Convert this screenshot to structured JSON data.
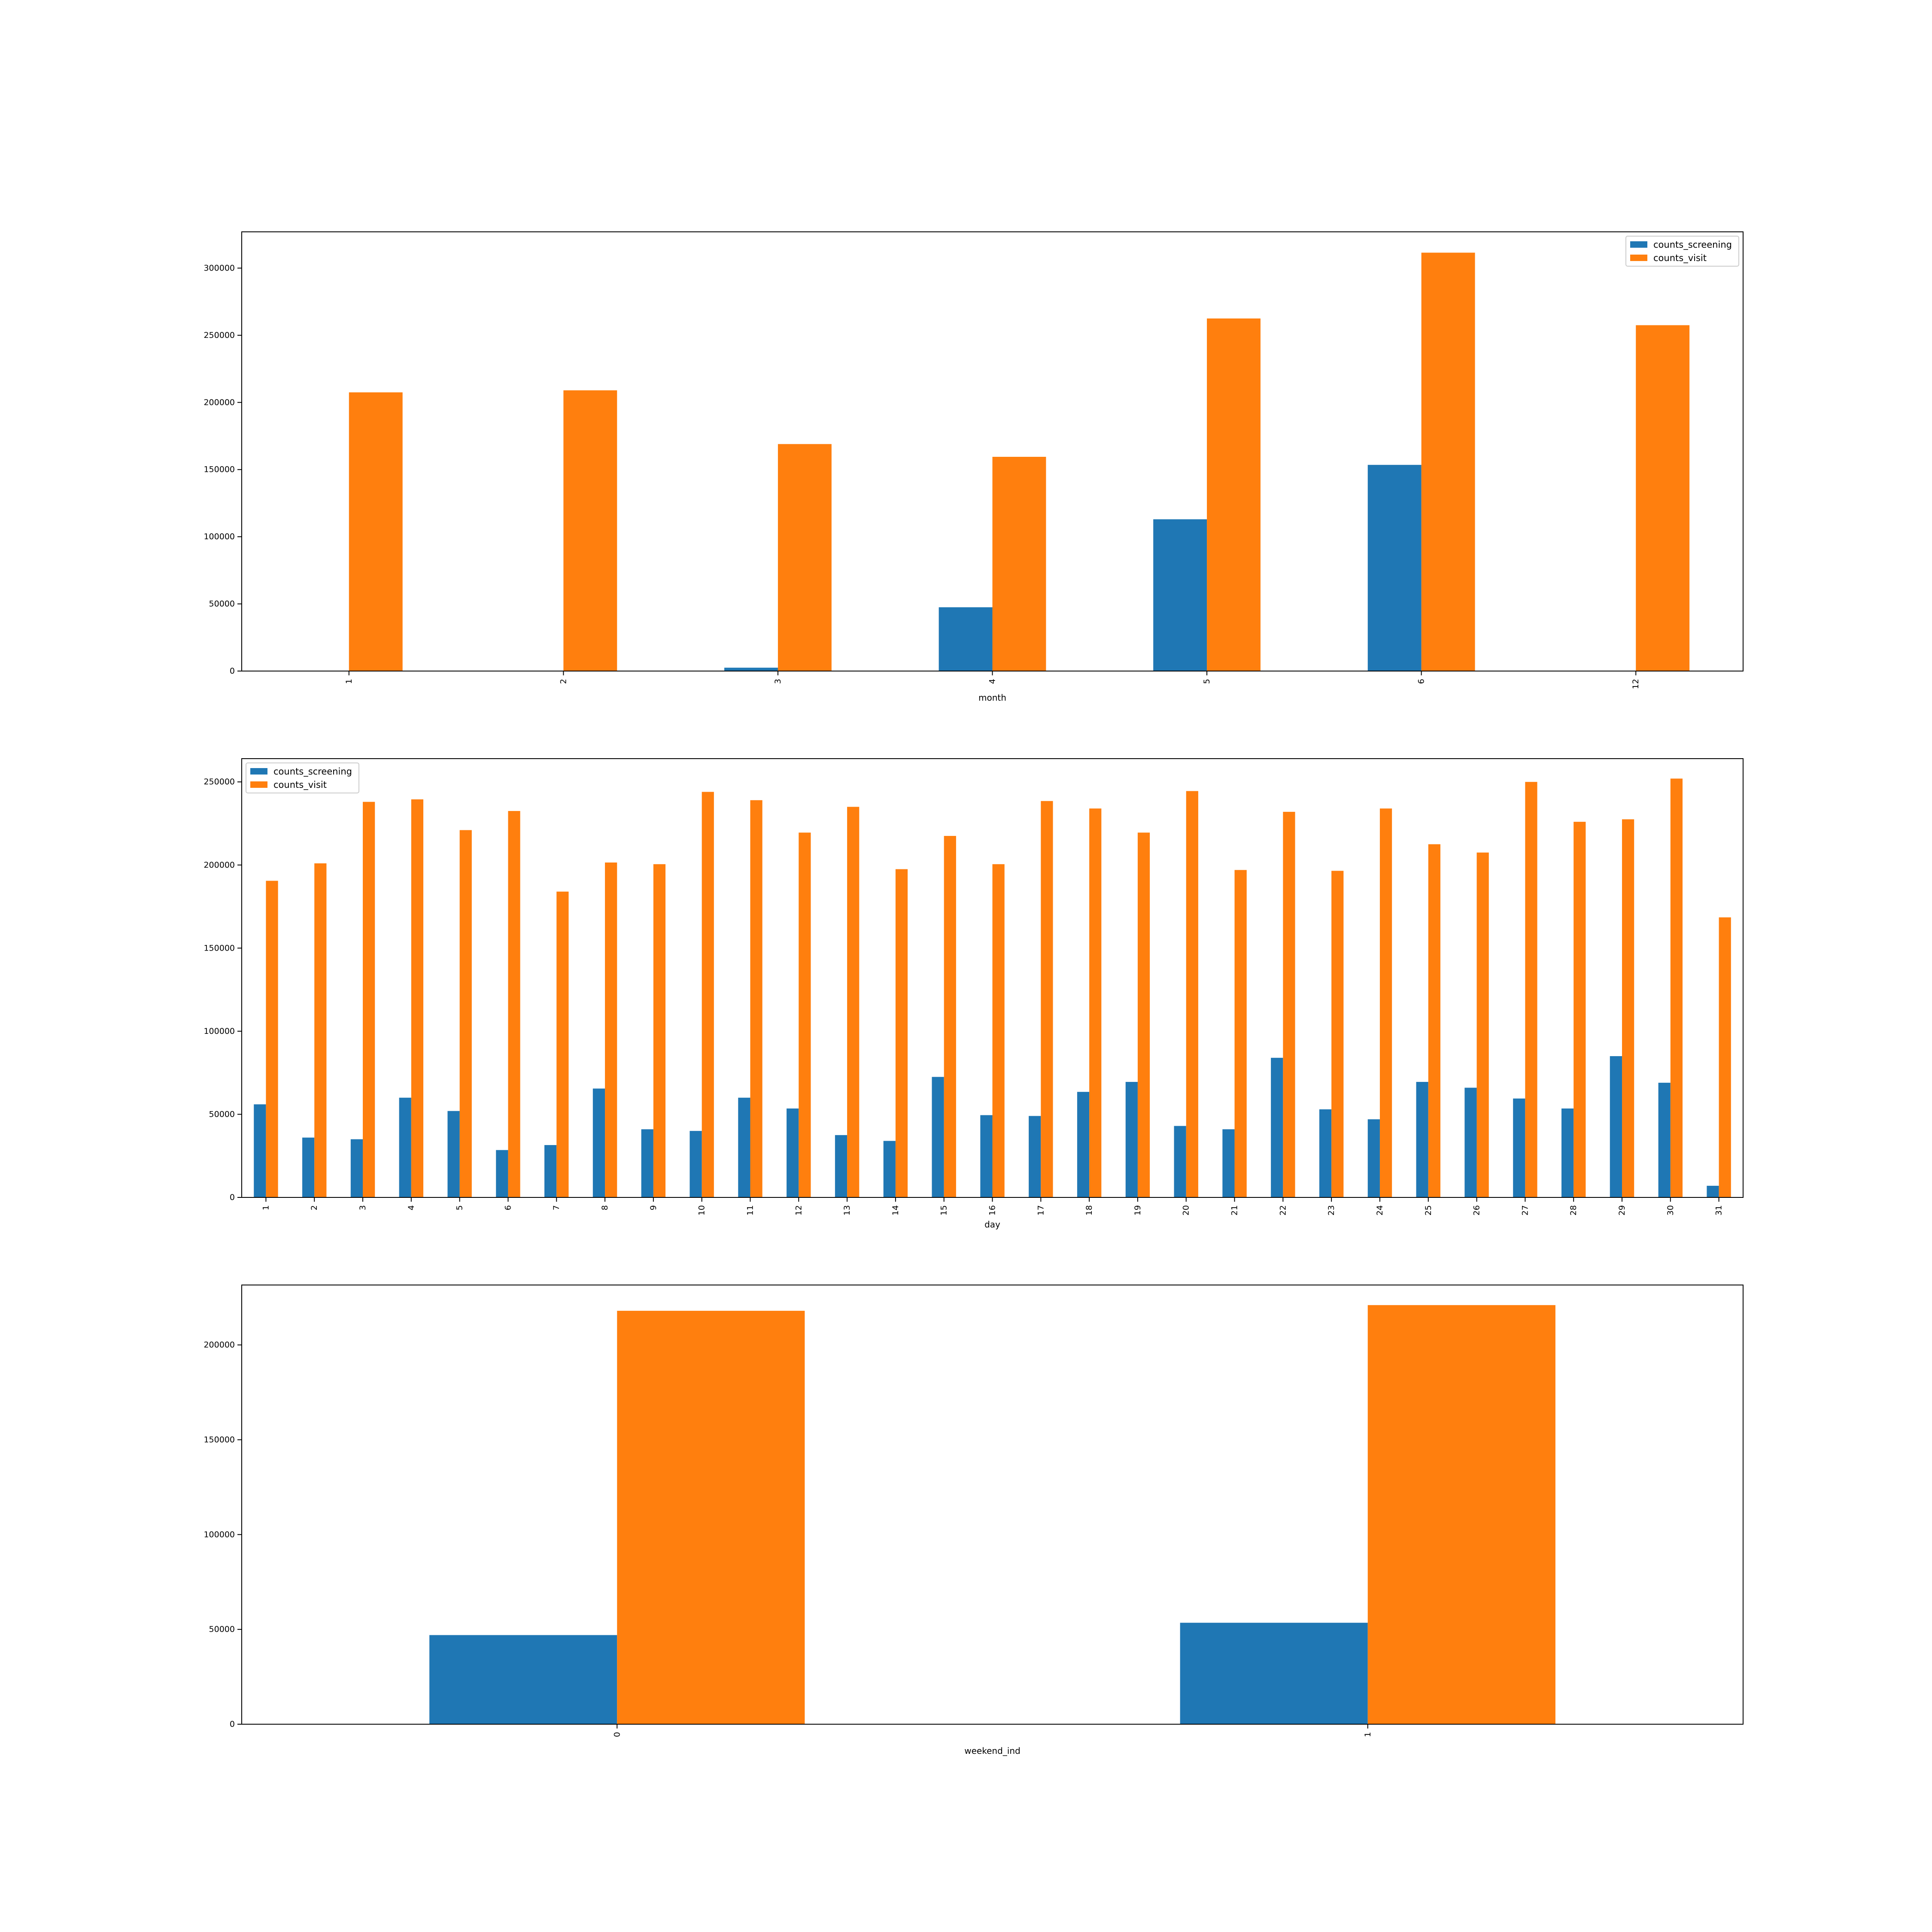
{
  "colors": {
    "screening": "#1f77b4",
    "visit": "#ff7f0e"
  },
  "chart_data": [
    {
      "type": "bar",
      "xlabel": "month",
      "ylabel": "",
      "categories": [
        "1",
        "2",
        "3",
        "4",
        "5",
        "6",
        "12"
      ],
      "series": [
        {
          "name": "counts_screening",
          "color": "#1f77b4",
          "values": [
            0,
            0,
            2500,
            47500,
            113000,
            153500,
            0
          ]
        },
        {
          "name": "counts_visit",
          "color": "#ff7f0e",
          "values": [
            207500,
            209000,
            169000,
            159500,
            262500,
            311500,
            257500
          ]
        }
      ],
      "ylim": [
        0,
        327000
      ],
      "yticks": [
        0,
        50000,
        100000,
        150000,
        200000,
        250000,
        300000
      ],
      "legend": "top-right",
      "grid": false
    },
    {
      "type": "bar",
      "xlabel": "day",
      "ylabel": "",
      "categories": [
        "1",
        "2",
        "3",
        "4",
        "5",
        "6",
        "7",
        "8",
        "9",
        "10",
        "11",
        "12",
        "13",
        "14",
        "15",
        "16",
        "17",
        "18",
        "19",
        "20",
        "21",
        "22",
        "23",
        "24",
        "25",
        "26",
        "27",
        "28",
        "29",
        "30",
        "31"
      ],
      "series": [
        {
          "name": "counts_screening",
          "color": "#1f77b4",
          "values": [
            56000,
            36000,
            35000,
            60000,
            52000,
            28500,
            31500,
            65500,
            41000,
            40000,
            60000,
            53500,
            37500,
            34000,
            72500,
            49500,
            49000,
            63500,
            69500,
            43000,
            41000,
            84000,
            53000,
            47000,
            69500,
            66000,
            59500,
            53500,
            85000,
            69000,
            7000
          ]
        },
        {
          "name": "counts_visit",
          "color": "#ff7f0e",
          "values": [
            190500,
            201000,
            238000,
            239500,
            221000,
            232500,
            184000,
            201500,
            200500,
            244000,
            239000,
            219500,
            235000,
            197500,
            217500,
            200500,
            238500,
            234000,
            219500,
            244500,
            197000,
            232000,
            196500,
            234000,
            212500,
            207500,
            250000,
            226000,
            227500,
            252000,
            168500
          ]
        }
      ],
      "ylim": [
        0,
        264000
      ],
      "yticks": [
        0,
        50000,
        100000,
        150000,
        200000,
        250000
      ],
      "legend": "top-left",
      "grid": false
    },
    {
      "type": "bar",
      "xlabel": "weekend_ind",
      "ylabel": "",
      "categories": [
        "0",
        "1"
      ],
      "series": [
        {
          "name": "counts_screening",
          "color": "#1f77b4",
          "values": [
            47000,
            53500
          ]
        },
        {
          "name": "counts_visit",
          "color": "#ff7f0e",
          "values": [
            218000,
            221000
          ]
        }
      ],
      "ylim": [
        0,
        231600
      ],
      "yticks": [
        0,
        50000,
        100000,
        150000,
        200000
      ],
      "legend": "none",
      "grid": false
    }
  ]
}
